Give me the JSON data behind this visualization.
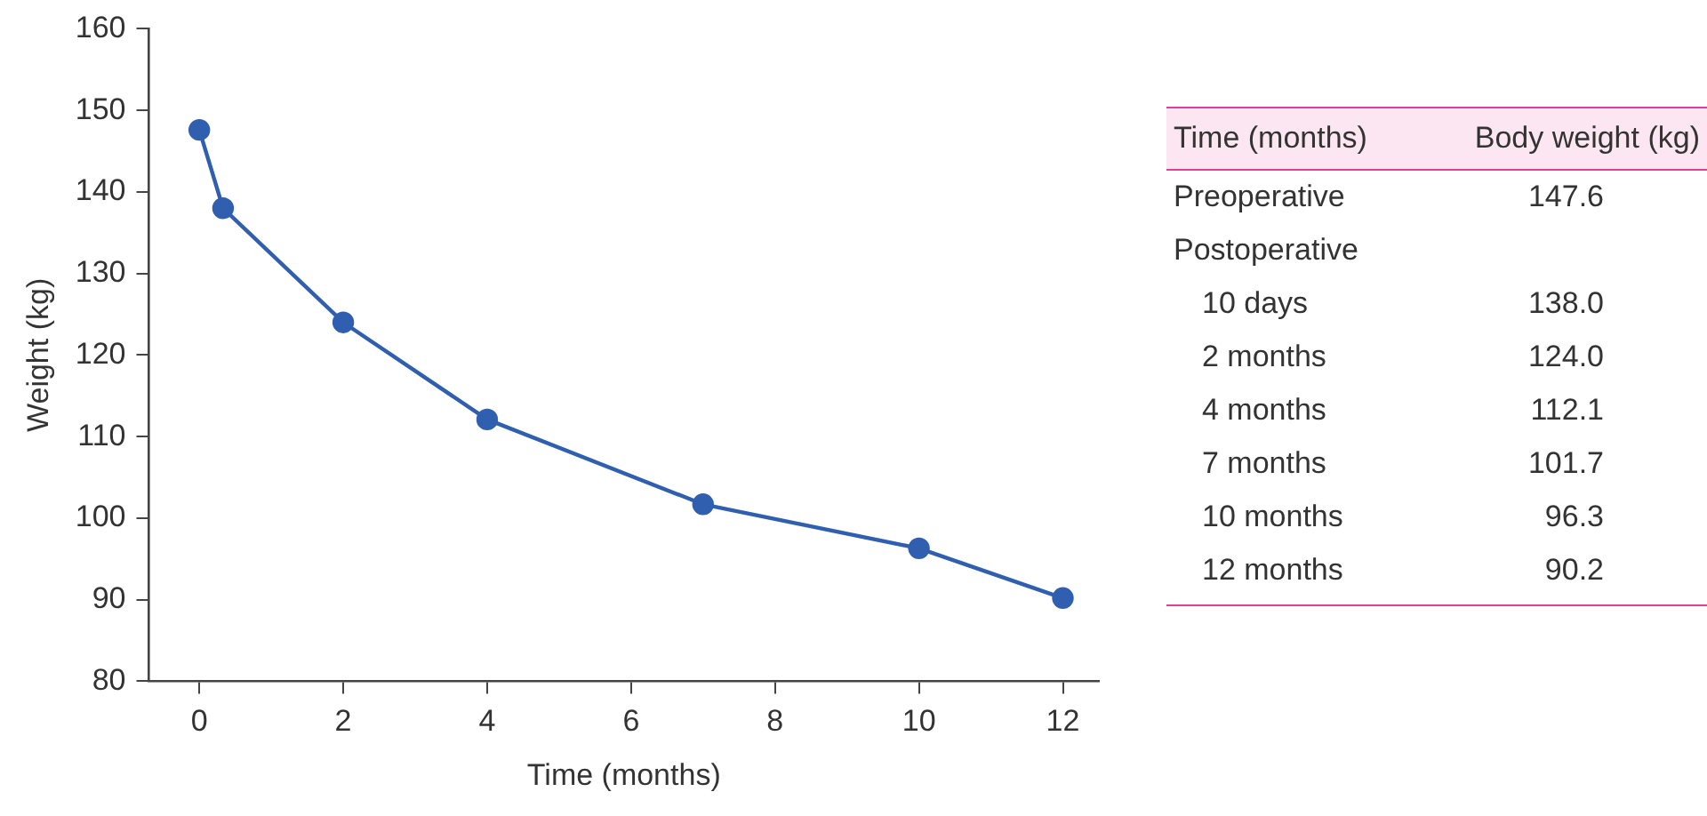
{
  "chart_data": [
    {
      "type": "line",
      "xlabel": "Time (months)",
      "ylabel": "Weight (kg)",
      "x": [
        0,
        0.33,
        2,
        4,
        7,
        10,
        12
      ],
      "values": [
        147.6,
        138.0,
        124.0,
        112.1,
        101.7,
        96.3,
        90.2
      ],
      "color": "#2f5fae",
      "marker": "circle",
      "line_style": "solid",
      "grid": false,
      "legend": false,
      "xlim": [
        -0.7,
        12.5
      ],
      "xticks": [
        0,
        2,
        4,
        6,
        8,
        10,
        12
      ],
      "ylim": [
        80,
        160
      ],
      "yticks": [
        80,
        90,
        100,
        110,
        120,
        130,
        140,
        150,
        160
      ]
    },
    {
      "type": "other",
      "annotations": [
        "Time (months)",
        "Body weight (kg)"
      ],
      "categories": [
        "Preoperative",
        "Postoperative",
        "10 days",
        "2 months",
        "4 months",
        "7 months",
        "10 months",
        "12 months"
      ],
      "values": [
        147.6,
        null,
        138.0,
        124.0,
        112.1,
        101.7,
        96.3,
        90.2
      ],
      "value_labels": [
        "147.6",
        null,
        "138.0",
        "124.0",
        "112.1",
        "101.7",
        "96.3",
        "90.2"
      ]
    }
  ]
}
